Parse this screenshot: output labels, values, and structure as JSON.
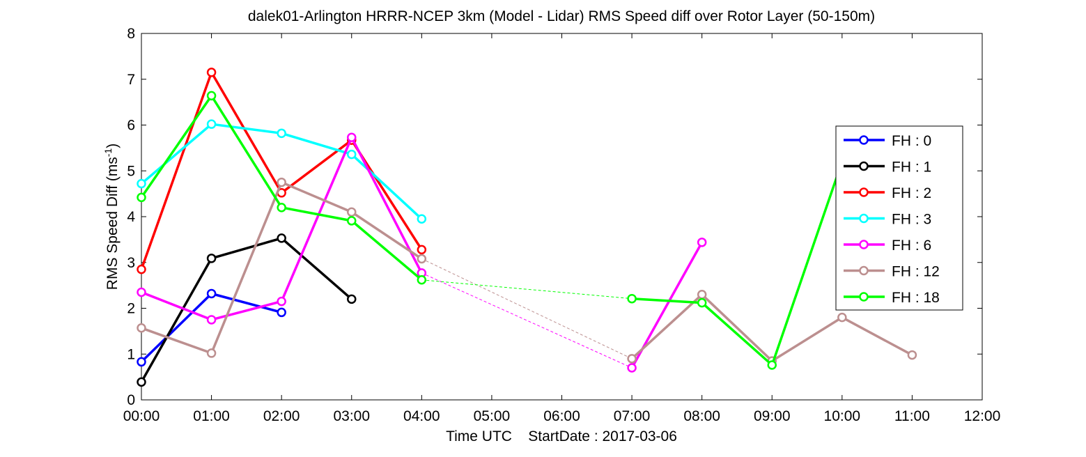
{
  "chart_data": {
    "type": "line",
    "title": "dalek01-Arlington HRRR-NCEP 3km (Model - Lidar) RMS Speed diff over Rotor Layer (50-150m)",
    "xlabel": "Time UTC    StartDate : 2017-03-06",
    "ylabel_main": "RMS Speed Diff (ms",
    "ylabel_sup": "-1",
    "ylabel_close": ")",
    "xlim": [
      0,
      12
    ],
    "ylim": [
      0,
      8
    ],
    "x_ticks": [
      0,
      1,
      2,
      3,
      4,
      5,
      6,
      7,
      8,
      9,
      10,
      11,
      12
    ],
    "x_tick_labels": [
      "00:00",
      "01:00",
      "02:00",
      "03:00",
      "04:00",
      "05:00",
      "06:00",
      "07:00",
      "08:00",
      "09:00",
      "10:00",
      "11:00",
      "12:00"
    ],
    "y_ticks": [
      0,
      1,
      2,
      3,
      4,
      5,
      6,
      7,
      8
    ],
    "y_tick_labels": [
      "0",
      "1",
      "2",
      "3",
      "4",
      "5",
      "6",
      "7",
      "8"
    ],
    "grid": false,
    "legend_position": "right",
    "series": [
      {
        "name": "FH : 0",
        "color": "#0000ff",
        "x": [
          0,
          1,
          2
        ],
        "y": [
          0.83,
          2.32,
          1.91
        ]
      },
      {
        "name": "FH : 1",
        "color": "#000000",
        "x": [
          0,
          1,
          2,
          3
        ],
        "y": [
          0.39,
          3.09,
          3.53,
          2.2
        ]
      },
      {
        "name": "FH : 2",
        "color": "#ff0000",
        "x": [
          0,
          1,
          2,
          3,
          4
        ],
        "y": [
          2.85,
          7.15,
          4.52,
          5.67,
          3.28
        ]
      },
      {
        "name": "FH : 3",
        "color": "#00ffff",
        "x": [
          0,
          1,
          2,
          3,
          4
        ],
        "y": [
          4.72,
          6.02,
          5.82,
          5.36,
          3.95
        ]
      },
      {
        "name": "FH : 6",
        "color": "#ff00ff",
        "x": [
          0,
          1,
          2,
          3,
          4,
          7,
          8
        ],
        "y": [
          2.35,
          1.75,
          2.15,
          5.73,
          2.77,
          0.7,
          3.44
        ],
        "dashed_after_index": 4
      },
      {
        "name": "FH : 12",
        "color": "#bc8f8f",
        "x": [
          0,
          1,
          2,
          3,
          4,
          7,
          8,
          9,
          10,
          11
        ],
        "y": [
          1.57,
          1.02,
          4.75,
          4.1,
          3.08,
          0.9,
          2.3,
          0.85,
          1.8,
          0.98
        ],
        "dashed_after_index": 4
      },
      {
        "name": "FH : 18",
        "color": "#00ff00",
        "x": [
          0,
          1,
          2,
          3,
          4,
          7,
          8,
          9,
          10
        ],
        "y": [
          4.42,
          6.64,
          4.2,
          3.91,
          2.62,
          2.21,
          2.12,
          0.76,
          5.2
        ],
        "dashed_after_index": 4
      }
    ]
  }
}
